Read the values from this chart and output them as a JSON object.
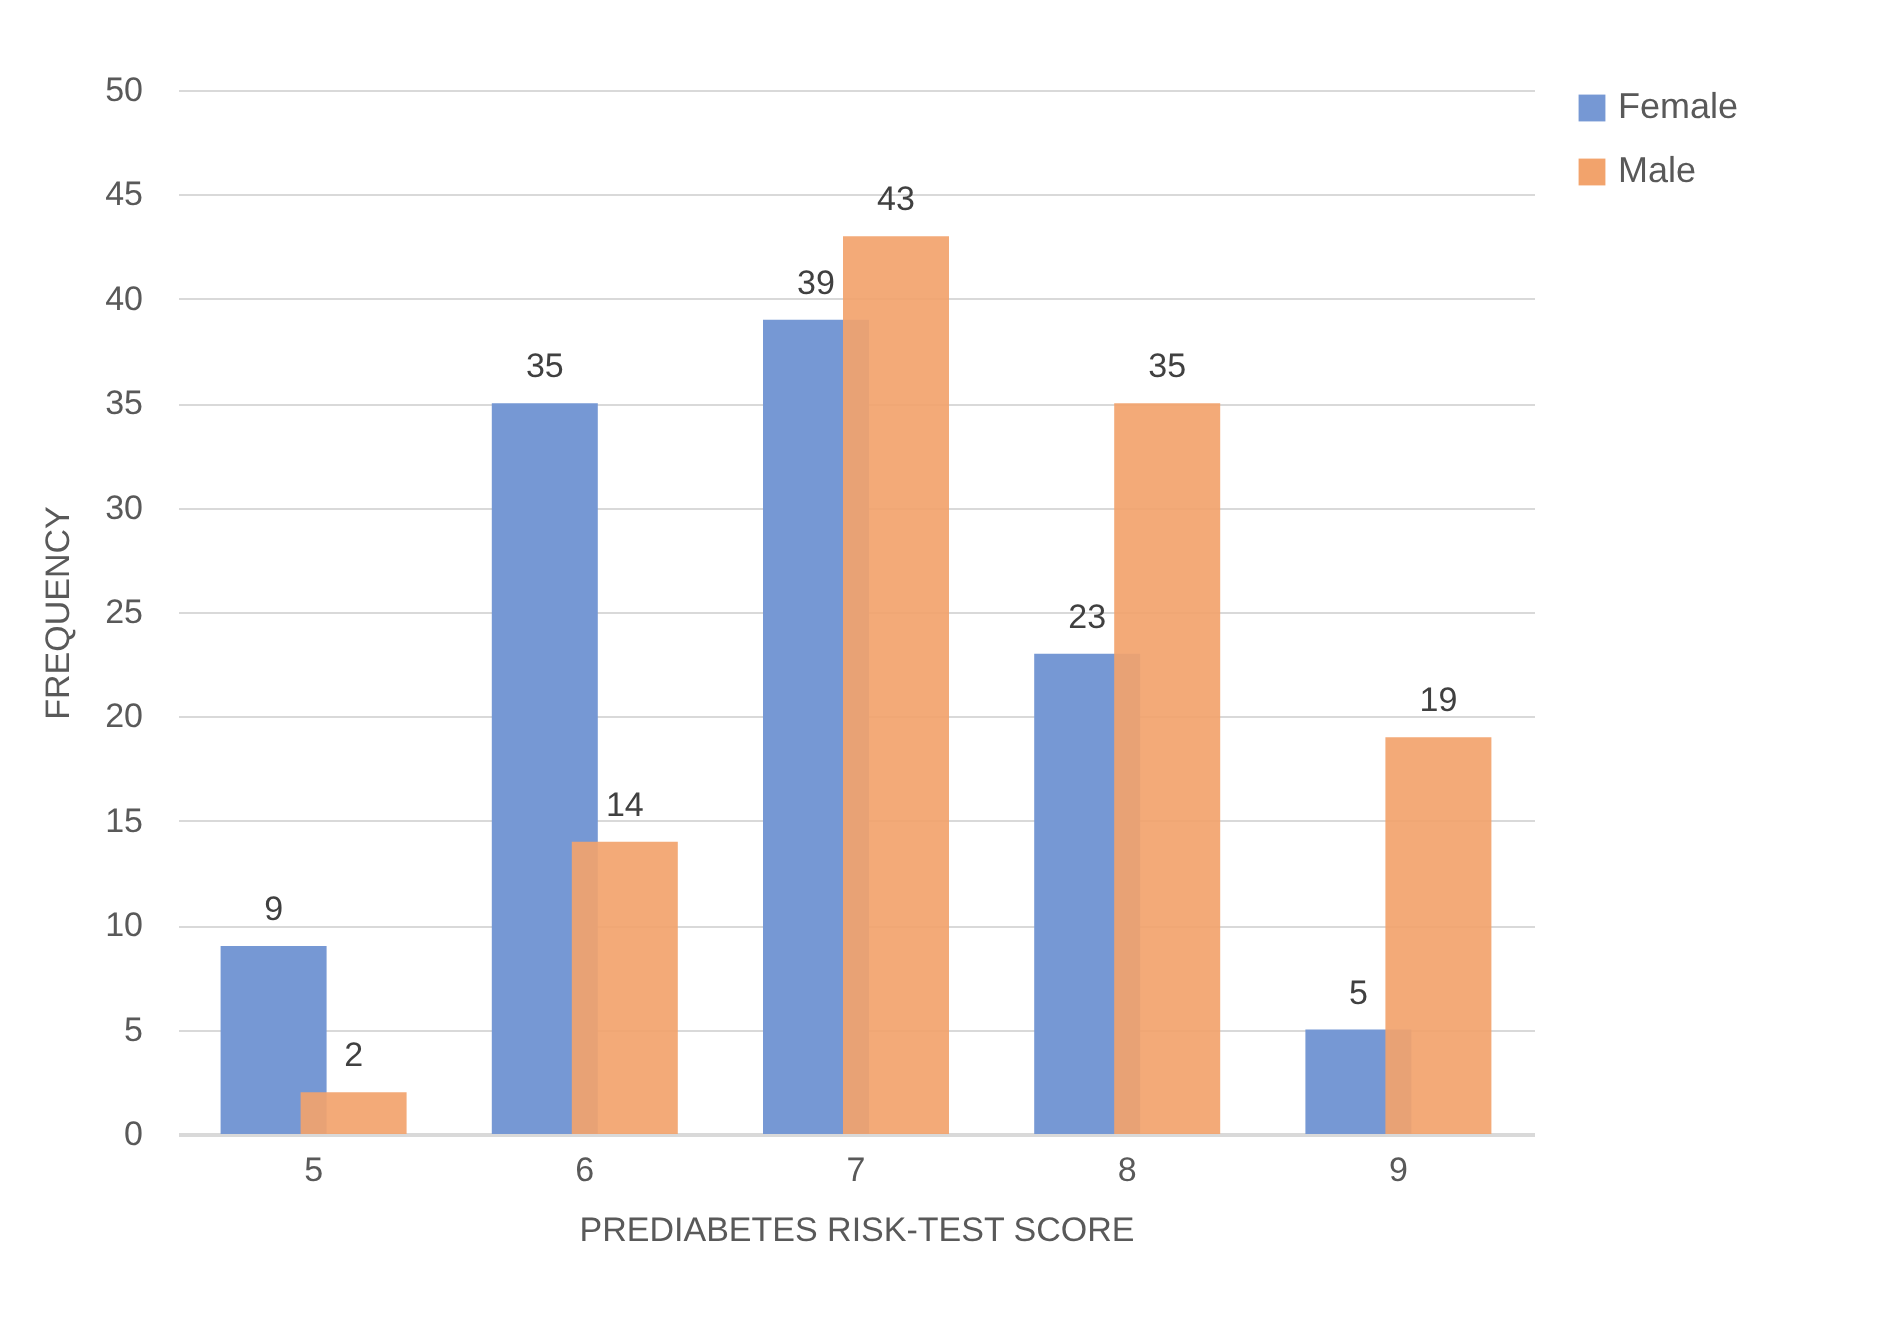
{
  "chart_data": {
    "type": "bar",
    "xlabel": "PREDIABETES RISK-TEST SCORE",
    "ylabel": "FREQUENCY",
    "categories": [
      "5",
      "6",
      "7",
      "8",
      "9"
    ],
    "series": [
      {
        "name": "Female",
        "color": "#7698d4",
        "values": [
          9,
          35,
          39,
          23,
          5
        ]
      },
      {
        "name": "Male",
        "color": "#f2a36c",
        "values": [
          2,
          14,
          43,
          35,
          19
        ]
      }
    ],
    "ylim": [
      0,
      50
    ],
    "yticks": [
      0,
      5,
      10,
      15,
      20,
      25,
      30,
      35,
      40,
      45,
      50
    ],
    "grid": "y",
    "legend": "right",
    "data_labels": true
  }
}
